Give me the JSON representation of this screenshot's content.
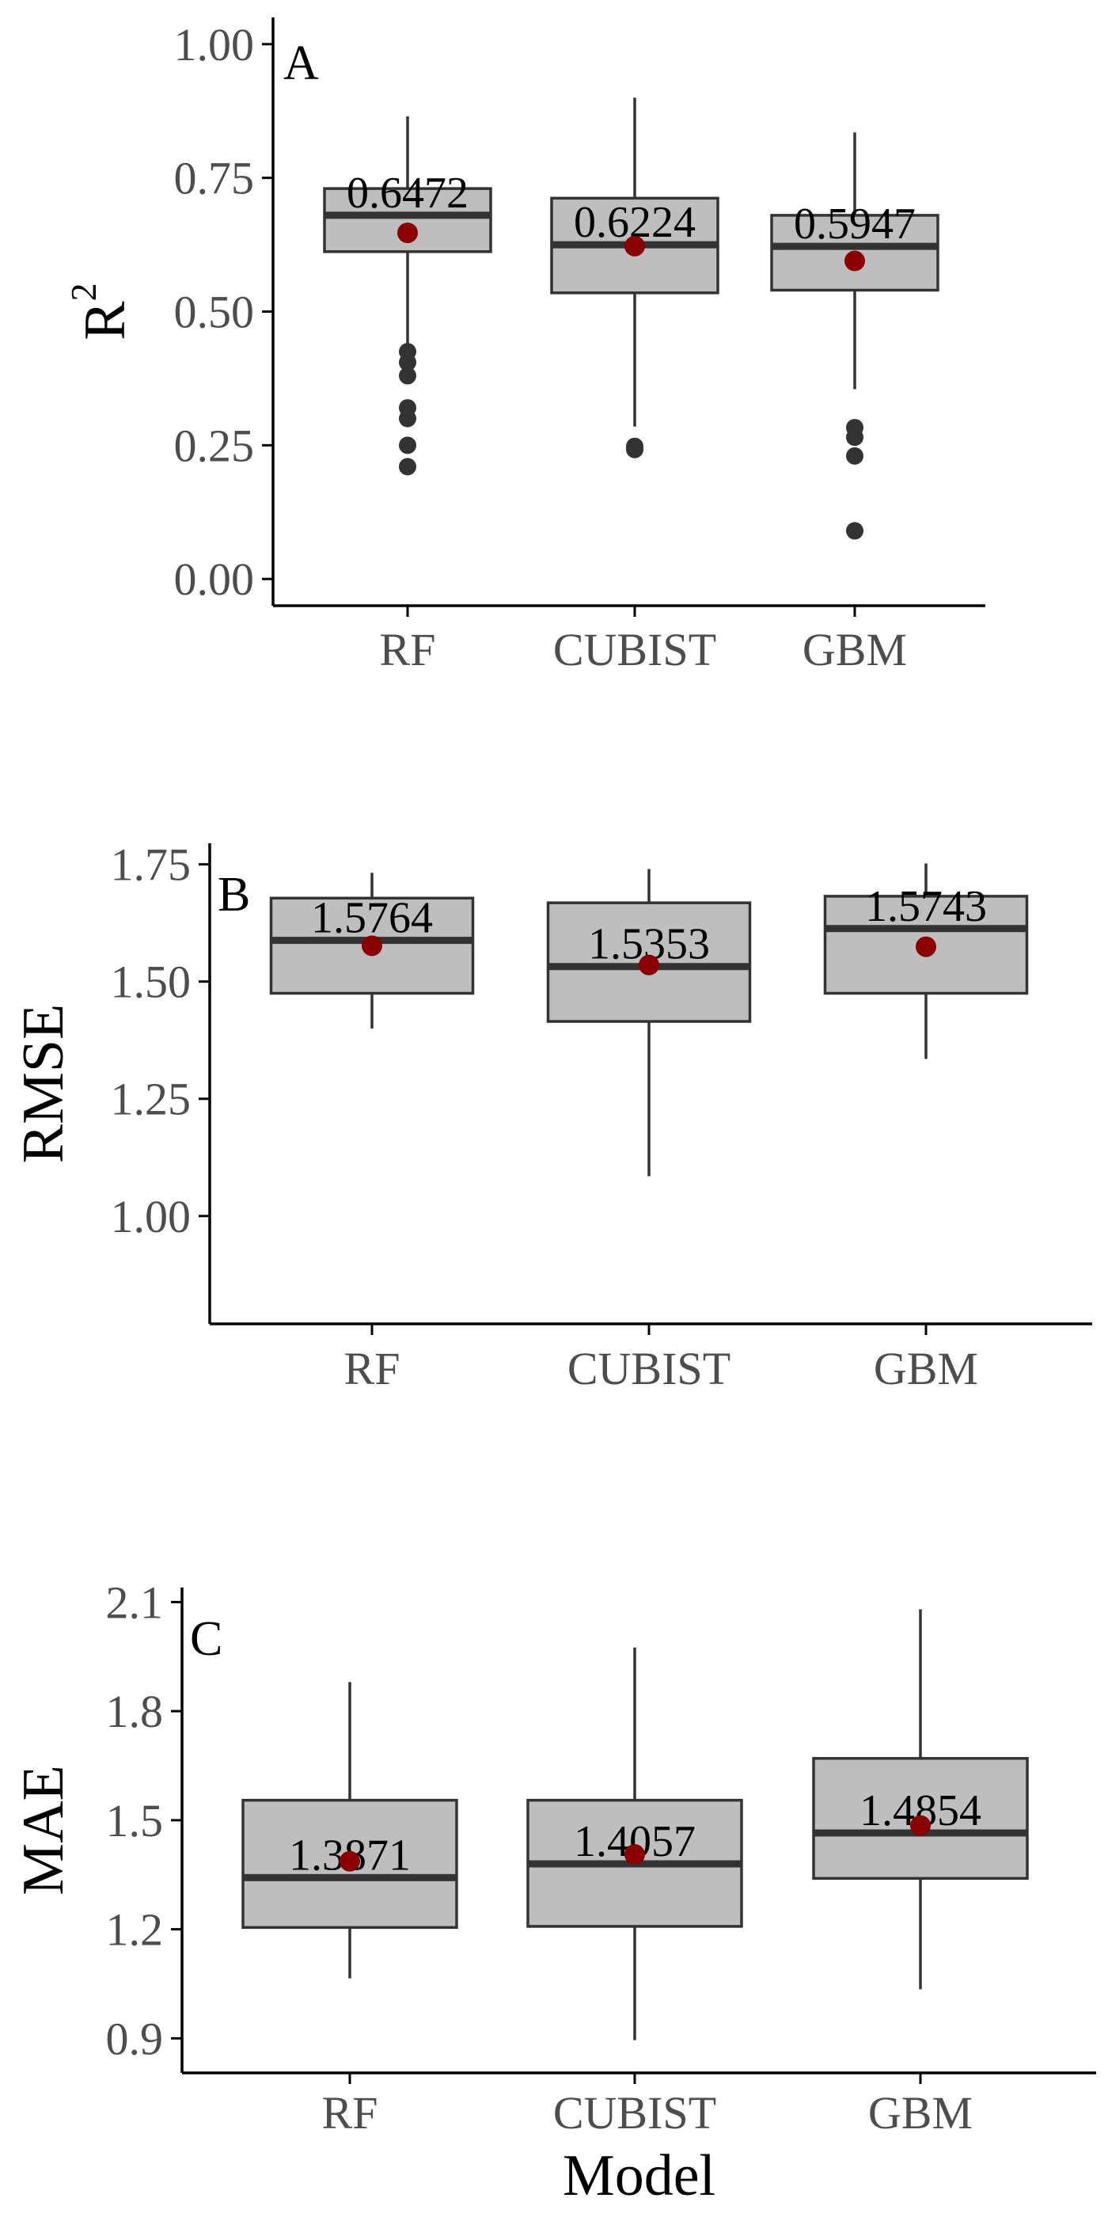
{
  "chart_data": [
    {
      "type": "box",
      "panel": "A",
      "xlabel": "",
      "ylabel": "R",
      "ylabel_superscript": "2",
      "categories": [
        "RF",
        "CUBIST",
        "GBM"
      ],
      "ylim": [
        -0.05,
        1.05
      ],
      "yticks": [
        "0.00",
        "0.25",
        "0.50",
        "0.75",
        "1.00"
      ],
      "tick_values": [
        0,
        0.25,
        0.5,
        0.75,
        1.0
      ],
      "boxes": [
        {
          "name": "RF",
          "lower_whisker": 0.44,
          "q1": 0.612,
          "median": 0.68,
          "q3": 0.73,
          "upper_whisker": 0.865,
          "mean": 0.6472,
          "mean_label": "0.6472",
          "outliers": [
            0.425,
            0.405,
            0.38,
            0.32,
            0.3,
            0.25,
            0.21
          ]
        },
        {
          "name": "CUBIST",
          "lower_whisker": 0.285,
          "q1": 0.535,
          "median": 0.625,
          "q3": 0.712,
          "upper_whisker": 0.9,
          "mean": 0.6224,
          "mean_label": "0.6224",
          "outliers": [
            0.248,
            0.242
          ]
        },
        {
          "name": "GBM",
          "lower_whisker": 0.355,
          "q1": 0.54,
          "median": 0.622,
          "q3": 0.68,
          "upper_whisker": 0.835,
          "mean": 0.5947,
          "mean_label": "0.5947",
          "outliers": [
            0.283,
            0.265,
            0.23,
            0.09
          ]
        }
      ]
    },
    {
      "type": "box",
      "panel": "B",
      "xlabel": "",
      "ylabel": "RMSE",
      "categories": [
        "RF",
        "CUBIST",
        "GBM"
      ],
      "ylim": [
        0.77,
        1.795
      ],
      "yticks": [
        "1.00",
        "1.25",
        "1.50",
        "1.75"
      ],
      "tick_values": [
        1.0,
        1.25,
        1.5,
        1.75
      ],
      "boxes": [
        {
          "name": "RF",
          "lower_whisker": 1.4,
          "q1": 1.475,
          "median": 1.588,
          "q3": 1.678,
          "upper_whisker": 1.732,
          "mean": 1.5764,
          "mean_label": "1.5764",
          "outliers": []
        },
        {
          "name": "CUBIST",
          "lower_whisker": 1.085,
          "q1": 1.415,
          "median": 1.532,
          "q3": 1.668,
          "upper_whisker": 1.74,
          "mean": 1.5353,
          "mean_label": "1.5353",
          "outliers": []
        },
        {
          "name": "GBM",
          "lower_whisker": 1.335,
          "q1": 1.475,
          "median": 1.613,
          "q3": 1.682,
          "upper_whisker": 1.752,
          "mean": 1.5743,
          "mean_label": "1.5743",
          "outliers": []
        }
      ]
    },
    {
      "type": "box",
      "panel": "C",
      "xlabel": "Model",
      "ylabel": "MAE",
      "categories": [
        "RF",
        "CUBIST",
        "GBM"
      ],
      "ylim": [
        0.805,
        2.14
      ],
      "yticks": [
        "0.9",
        "1.2",
        "1.5",
        "1.8",
        "2.1"
      ],
      "tick_values": [
        0.9,
        1.2,
        1.5,
        1.8,
        2.1
      ],
      "boxes": [
        {
          "name": "RF",
          "lower_whisker": 1.065,
          "q1": 1.205,
          "median": 1.342,
          "q3": 1.555,
          "upper_whisker": 1.88,
          "mean": 1.3871,
          "mean_label": "1.3871",
          "outliers": []
        },
        {
          "name": "CUBIST",
          "lower_whisker": 0.895,
          "q1": 1.208,
          "median": 1.38,
          "q3": 1.555,
          "upper_whisker": 1.975,
          "mean": 1.4057,
          "mean_label": "1.4057",
          "outliers": []
        },
        {
          "name": "GBM",
          "lower_whisker": 1.035,
          "q1": 1.34,
          "median": 1.465,
          "q3": 1.67,
          "upper_whisker": 2.08,
          "mean": 1.4854,
          "mean_label": "1.4854",
          "outliers": []
        }
      ]
    }
  ],
  "colors": {
    "box_fill": "#bebebe",
    "box_stroke": "#333333",
    "mean_point": "#8b0000",
    "outlier": "#333333",
    "axis": "#000000",
    "tick_text": "#4d4d4d"
  }
}
